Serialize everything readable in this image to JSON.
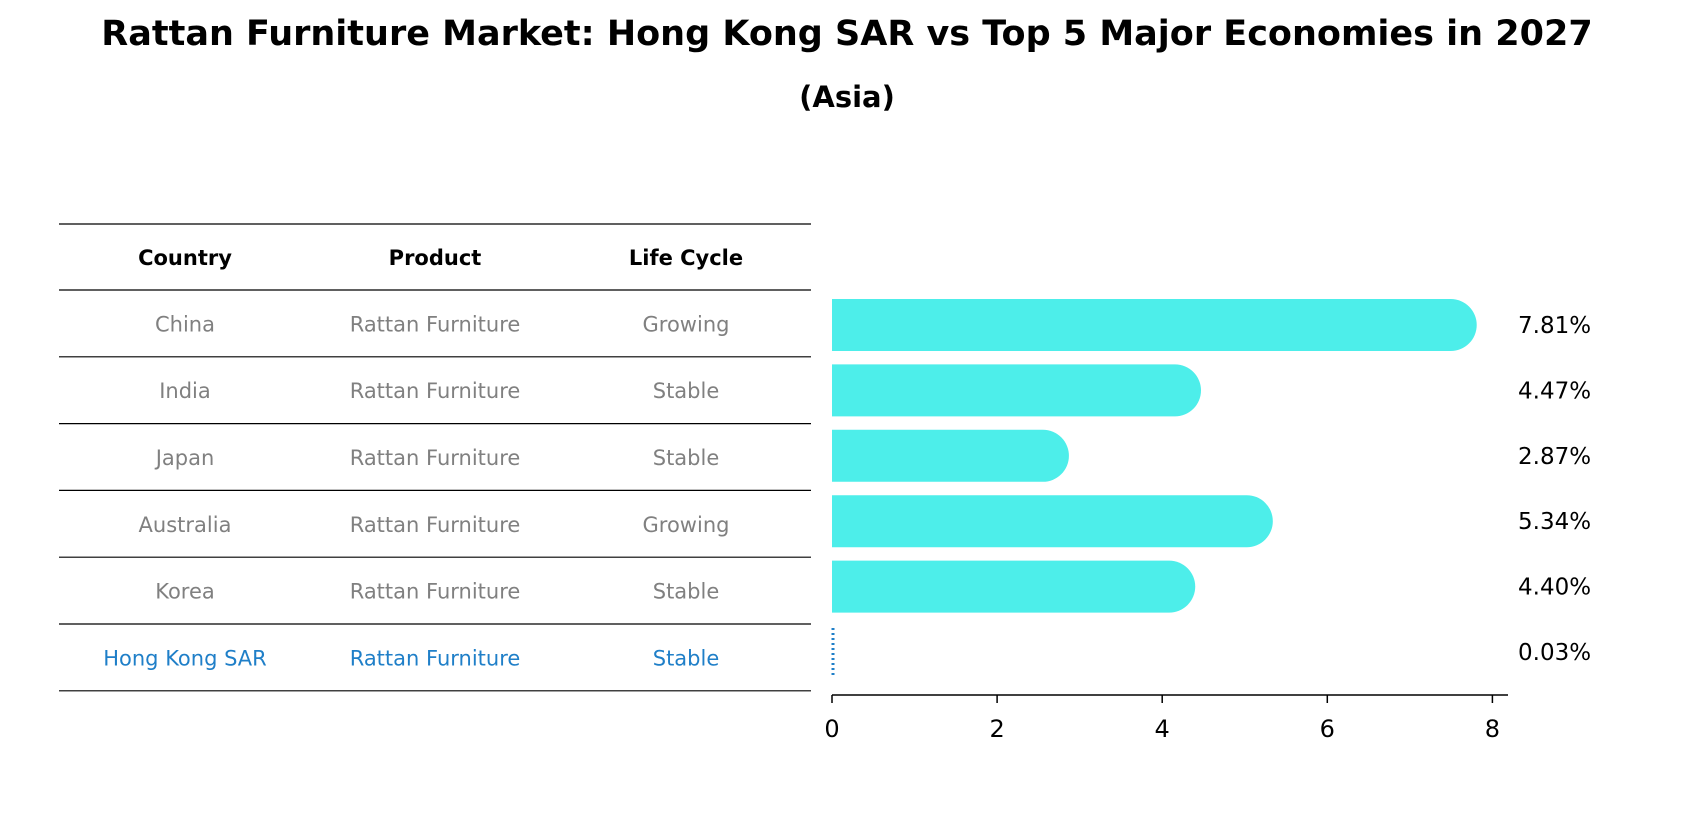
{
  "title": "Rattan Furniture Market: Hong Kong SAR vs Top 5 Major Economies in 2027",
  "subtitle": "(Asia)",
  "table": {
    "headers": [
      "Country",
      "Product",
      "Life Cycle"
    ],
    "rows": [
      [
        "China",
        "Rattan Furniture",
        "Growing"
      ],
      [
        "India",
        "Rattan Furniture",
        "Stable"
      ],
      [
        "Japan",
        "Rattan Furniture",
        "Stable"
      ],
      [
        "Australia",
        "Rattan Furniture",
        "Growing"
      ],
      [
        "Korea",
        "Rattan Furniture",
        "Stable"
      ],
      [
        "Hong Kong SAR",
        "Rattan Furniture",
        "Stable"
      ]
    ],
    "highlight_row": "Hong Kong SAR"
  },
  "colors": {
    "bar": "#4deeea",
    "highlight": "#1f7fc8",
    "muted_text": "#808080"
  },
  "chart_data": {
    "type": "bar",
    "orientation": "horizontal",
    "categories": [
      "China",
      "India",
      "Japan",
      "Australia",
      "Korea",
      "Hong Kong SAR"
    ],
    "values": [
      7.81,
      4.47,
      2.87,
      5.34,
      4.4,
      0.03
    ],
    "labels": [
      "7.81%",
      "4.47%",
      "2.87%",
      "5.34%",
      "4.40%",
      "0.03%"
    ],
    "xlim": [
      0,
      8.2
    ],
    "xticks": [
      0,
      2,
      4,
      6,
      8
    ],
    "grid": false,
    "legend": "none"
  }
}
